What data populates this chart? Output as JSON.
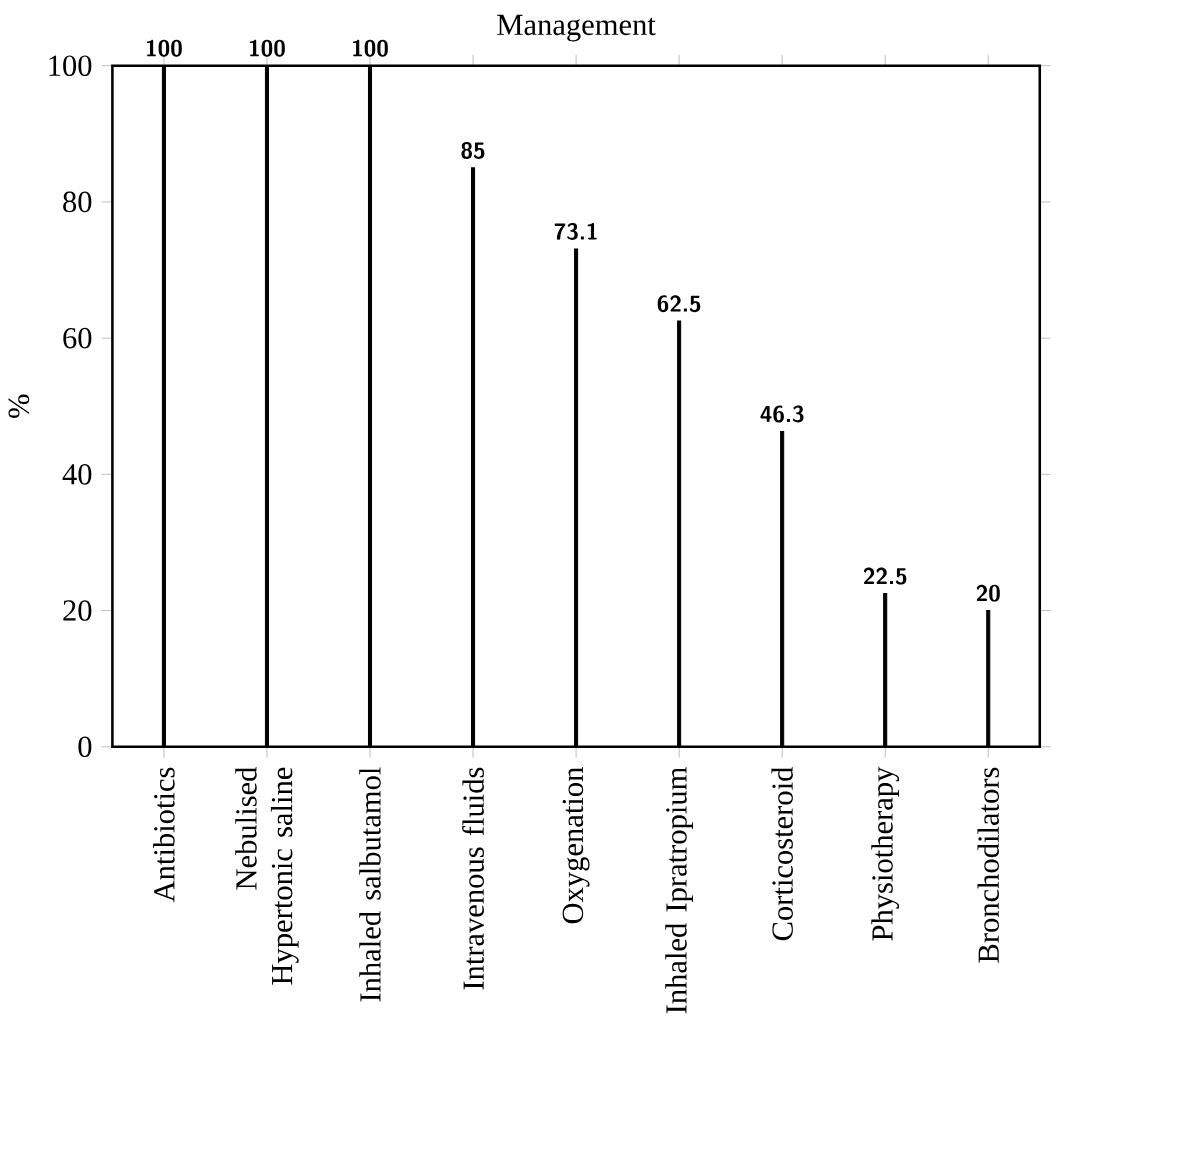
{
  "chart_data": {
    "type": "bar",
    "title": "Management",
    "ylabel": "%",
    "categories": [
      "Antibiotics",
      "Nebulised Hypertonic saline",
      "Inhaled salbutamol",
      "Intravenous fluids",
      "Oxygenation",
      "Inhaled Ipratropium",
      "Corticosteroid",
      "Physiotherapy",
      "Bronchodilators"
    ],
    "values": [
      100,
      100,
      100,
      85,
      73.1,
      62.5,
      46.3,
      22.5,
      20
    ],
    "color": "#000000",
    "ylim": [
      0,
      100
    ],
    "yticks": [
      0,
      20,
      40,
      60,
      80,
      100
    ],
    "grid": false,
    "data_labels": true
  }
}
